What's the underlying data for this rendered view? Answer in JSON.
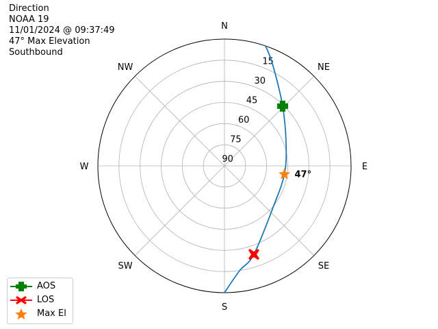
{
  "header": {
    "lines": [
      "Direction",
      "NOAA 19",
      "11/01/2024 @ 09:37:49",
      "47° Max Elevation",
      "Southbound"
    ]
  },
  "chart_data": {
    "type": "polar-line",
    "theta_direction": "clockwise",
    "theta_zero": "north",
    "direction_labels": [
      "N",
      "NE",
      "E",
      "SE",
      "S",
      "SW",
      "W",
      "NW"
    ],
    "radial_ticks": [
      15,
      30,
      45,
      60,
      75,
      90
    ],
    "radial_range": [
      0,
      90
    ],
    "radial_meaning_note": "elevation, 90 at center",
    "grid": true,
    "track": {
      "color": "#1f77b4",
      "points": [
        {
          "az": 18.9,
          "el": 0
        },
        {
          "az": 25.2,
          "el": 9.9
        },
        {
          "az": 44.3,
          "el": 30.8
        },
        {
          "az": 70.4,
          "el": 43.5
        },
        {
          "az": 98.0,
          "el": 47.0
        },
        {
          "az": 128.9,
          "el": 45.0
        },
        {
          "az": 161.6,
          "el": 23.8
        },
        {
          "az": 171.8,
          "el": 14.8
        },
        {
          "az": 180.0,
          "el": 0
        }
      ]
    },
    "markers": {
      "aos": {
        "az": 44.3,
        "el": 30.8,
        "color": "#008000"
      },
      "los": {
        "az": 161.6,
        "el": 23.8,
        "color": "#ff0000"
      },
      "max_el": {
        "az": 98.0,
        "el": 47.0,
        "color": "#ff7f0e",
        "label": "47°"
      }
    },
    "legend": {
      "placement": "bottom-left",
      "entries": [
        "AOS",
        "LOS",
        "Max El"
      ]
    }
  }
}
